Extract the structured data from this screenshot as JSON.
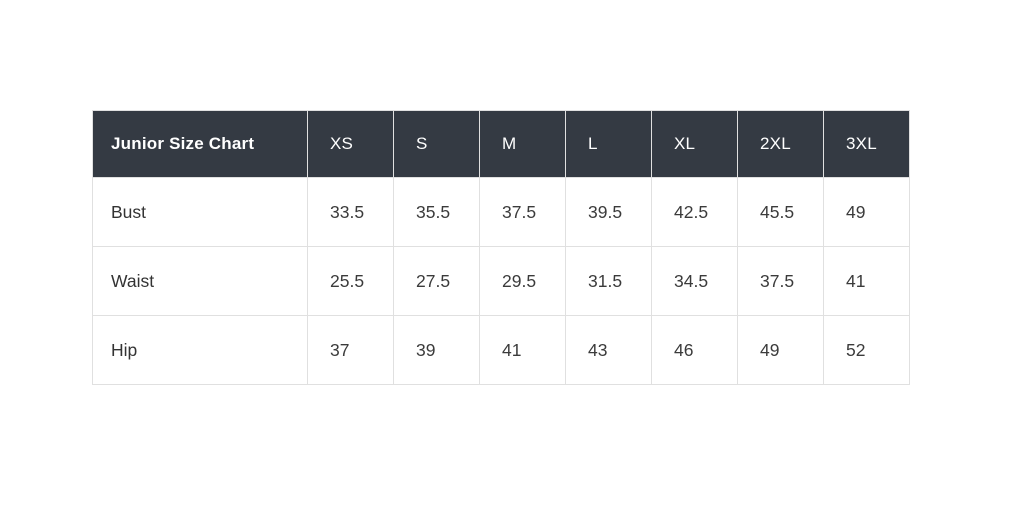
{
  "chart_data": {
    "type": "table",
    "title": "Junior Size Chart",
    "columns": [
      "Junior Size Chart",
      "XS",
      "S",
      "M",
      "L",
      "XL",
      "2XL",
      "3XL"
    ],
    "rows": [
      [
        "Bust",
        "33.5",
        "35.5",
        "37.5",
        "39.5",
        "42.5",
        "45.5",
        "49"
      ],
      [
        "Waist",
        "25.5",
        "27.5",
        "29.5",
        "31.5",
        "34.5",
        "37.5",
        "41"
      ],
      [
        "Hip",
        "37",
        "39",
        "41",
        "43",
        "46",
        "49",
        "52"
      ]
    ]
  },
  "colors": {
    "header_background": "#343a43",
    "header_text": "#ffffff",
    "body_text": "#3b3b3b",
    "cell_border": "#e0e0e0",
    "page_background": "#ffffff"
  }
}
